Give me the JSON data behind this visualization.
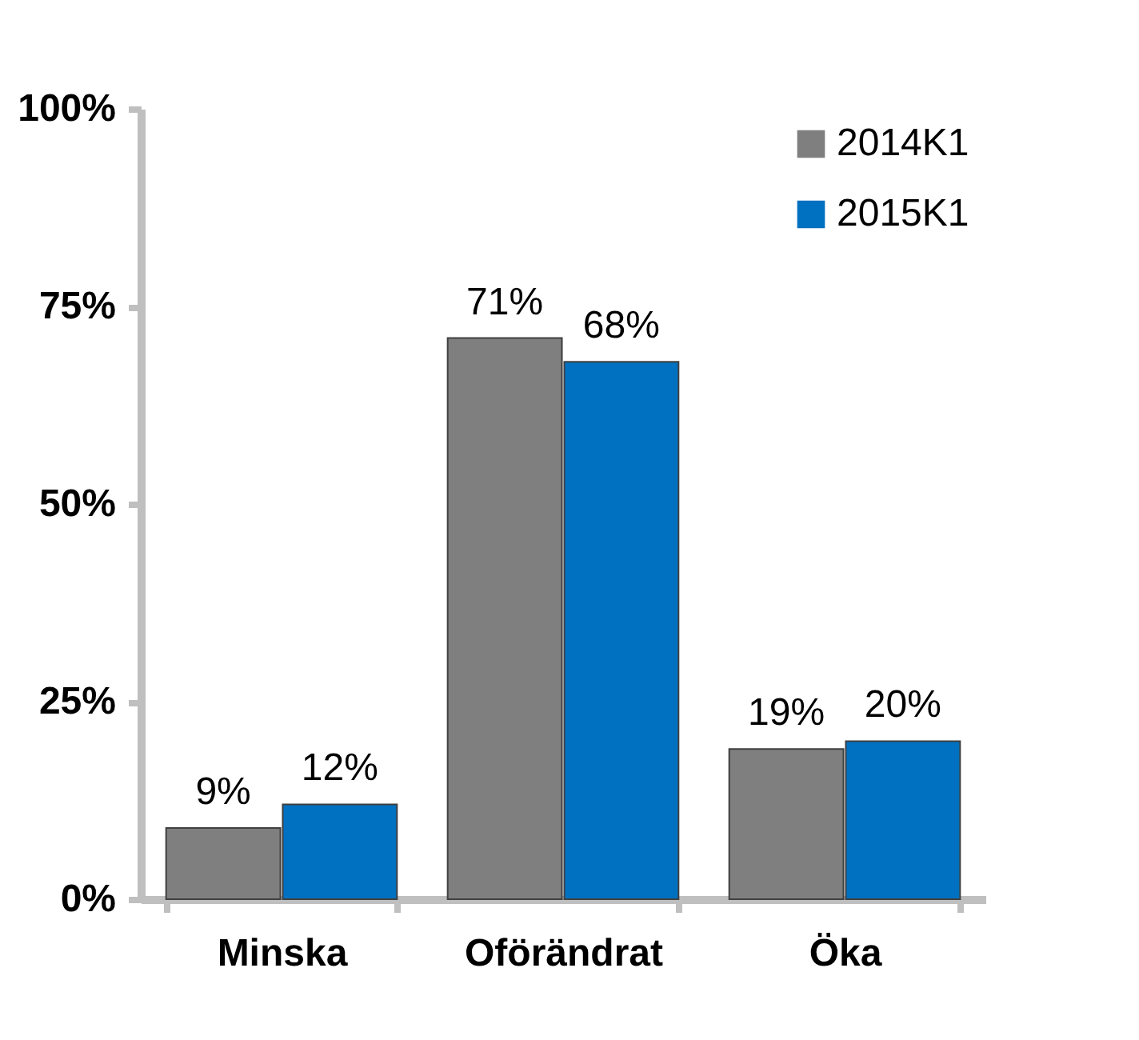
{
  "chart_data": {
    "type": "bar",
    "categories": [
      "Minska",
      "Oförändrat",
      "Öka"
    ],
    "series": [
      {
        "name": "2014K1",
        "color": "#7f7f7f",
        "values": [
          9,
          71,
          19
        ],
        "value_labels": [
          "9%",
          "71%",
          "19%"
        ]
      },
      {
        "name": "2015K1",
        "color": "#0070c0",
        "values": [
          12,
          68,
          20
        ],
        "value_labels": [
          "12%",
          "68%",
          "20%"
        ]
      }
    ],
    "ylim": [
      0,
      100
    ],
    "yticks": [
      {
        "value": 0,
        "label": "0%"
      },
      {
        "value": 25,
        "label": "25%"
      },
      {
        "value": 50,
        "label": "50%"
      },
      {
        "value": 75,
        "label": "75%"
      },
      {
        "value": 100,
        "label": "100%"
      }
    ],
    "grid": false,
    "legend": "top right"
  }
}
